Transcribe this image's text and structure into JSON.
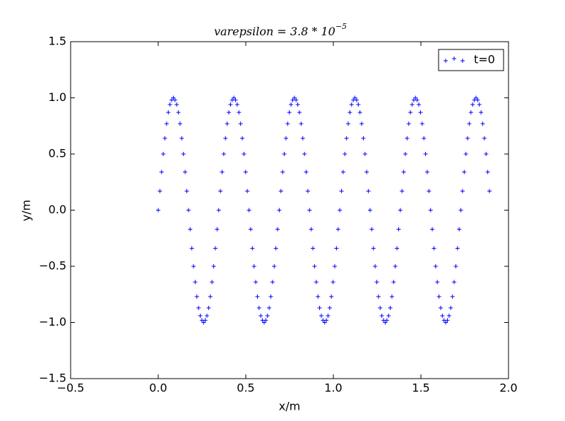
{
  "chart_data": {
    "type": "scatter",
    "title": "varepsilon = 3.8 * 10",
    "title_superscript": "−5",
    "x_label": "x/m",
    "y_label": "y/m",
    "xlim": [
      -0.5,
      2.0
    ],
    "ylim": [
      -1.5,
      1.5
    ],
    "xticks": [
      {
        "value": -0.5,
        "label": "−0.5"
      },
      {
        "value": 0,
        "label": "0.0"
      },
      {
        "value": 0.5,
        "label": "0.5"
      },
      {
        "value": 1,
        "label": "1.0"
      },
      {
        "value": 1.5,
        "label": "1.5"
      },
      {
        "value": 2,
        "label": "2.0"
      }
    ],
    "yticks": [
      {
        "value": -1.5,
        "label": "−1.5"
      },
      {
        "value": -1,
        "label": "−1.0"
      },
      {
        "value": -0.5,
        "label": "−0.5"
      },
      {
        "value": 0,
        "label": "0.0"
      },
      {
        "value": 0.5,
        "label": "0.5"
      },
      {
        "value": 1,
        "label": "1.0"
      },
      {
        "value": 1.5,
        "label": "1.5"
      }
    ],
    "legend": "upper right",
    "series": [
      {
        "name": "t=0",
        "color": "#0000ff",
        "marker": "+",
        "x": [
          0,
          0.0096,
          0.0192,
          0.0288,
          0.0384,
          0.048,
          0.0576,
          0.0672,
          0.0768,
          0.0864,
          0.096,
          0.1056,
          0.1152,
          0.1248,
          0.1344,
          0.144,
          0.1536,
          0.1632,
          0.1728,
          0.1824,
          0.192,
          0.2016,
          0.2112,
          0.2208,
          0.2304,
          0.24,
          0.2496,
          0.2592,
          0.2688,
          0.2784,
          0.288,
          0.2976,
          0.3072,
          0.3168,
          0.3264,
          0.336,
          0.3456,
          0.3552,
          0.3648,
          0.3744,
          0.384,
          0.3936,
          0.4032,
          0.4128,
          0.4224,
          0.432,
          0.4416,
          0.4512,
          0.4608,
          0.4704,
          0.48,
          0.4896,
          0.4992,
          0.5088,
          0.5184,
          0.528,
          0.5376,
          0.5472,
          0.5568,
          0.5664,
          0.576,
          0.5856,
          0.5952,
          0.6048,
          0.6144,
          0.624,
          0.6336,
          0.6432,
          0.6528,
          0.6624,
          0.672,
          0.6816,
          0.6912,
          0.7008,
          0.7104,
          0.72,
          0.7296,
          0.7392,
          0.7488,
          0.7584,
          0.768,
          0.7776,
          0.7872,
          0.7968,
          0.8064,
          0.816,
          0.8256,
          0.8352,
          0.8448,
          0.8544,
          0.864,
          0.8736,
          0.8832,
          0.8928,
          0.9024,
          0.912,
          0.9216,
          0.9312,
          0.9408,
          0.9504,
          0.96,
          0.9696,
          0.9792,
          0.9888,
          0.9984,
          1.008,
          1.0176,
          1.0272,
          1.0368,
          1.0464,
          1.056,
          1.0656,
          1.0752,
          1.0848,
          1.0944,
          1.104,
          1.1136,
          1.1232,
          1.1328,
          1.1424,
          1.152,
          1.1616,
          1.1712,
          1.1808,
          1.1904,
          1.2,
          1.2096,
          1.2192,
          1.2288,
          1.2384,
          1.248,
          1.2576,
          1.2672,
          1.2768,
          1.2864,
          1.296,
          1.3056,
          1.3152,
          1.3248,
          1.3344,
          1.344,
          1.3536,
          1.3632,
          1.3728,
          1.3824,
          1.392,
          1.4016,
          1.4112,
          1.4208,
          1.4304,
          1.44,
          1.4496,
          1.4592,
          1.4688,
          1.4784,
          1.488,
          1.4976,
          1.5072,
          1.5168,
          1.5264,
          1.536,
          1.5456,
          1.5552,
          1.5648,
          1.5744,
          1.584,
          1.5936,
          1.6032,
          1.6128,
          1.6224,
          1.632,
          1.6416,
          1.6512,
          1.6608,
          1.6704,
          1.68,
          1.6896,
          1.6992,
          1.7088,
          1.7184,
          1.728,
          1.7376,
          1.7472,
          1.7568,
          1.7664,
          1.776,
          1.7856,
          1.7952,
          1.8048,
          1.8144,
          1.824,
          1.8336,
          1.8432,
          1.8528,
          1.8624,
          1.872,
          1.8816,
          1.8912
        ],
        "values": [
          0,
          0.17,
          0.34,
          0.5,
          0.64,
          0.77,
          0.87,
          0.94,
          0.98,
          1,
          0.98,
          0.94,
          0.87,
          0.77,
          0.64,
          0.5,
          0.34,
          0.17,
          0,
          -0.17,
          -0.34,
          -0.5,
          -0.64,
          -0.77,
          -0.87,
          -0.94,
          -0.98,
          -1,
          -0.98,
          -0.94,
          -0.87,
          -0.77,
          -0.64,
          -0.5,
          -0.34,
          -0.17,
          0,
          0.17,
          0.34,
          0.5,
          0.64,
          0.77,
          0.87,
          0.94,
          0.98,
          1,
          0.98,
          0.94,
          0.87,
          0.77,
          0.64,
          0.5,
          0.34,
          0.17,
          0,
          -0.17,
          -0.34,
          -0.5,
          -0.64,
          -0.77,
          -0.87,
          -0.94,
          -0.98,
          -1,
          -0.98,
          -0.94,
          -0.87,
          -0.77,
          -0.64,
          -0.5,
          -0.34,
          -0.17,
          0,
          0.17,
          0.34,
          0.5,
          0.64,
          0.77,
          0.87,
          0.94,
          0.98,
          1,
          0.98,
          0.94,
          0.87,
          0.77,
          0.64,
          0.5,
          0.34,
          0.17,
          0,
          -0.17,
          -0.34,
          -0.5,
          -0.64,
          -0.77,
          -0.87,
          -0.94,
          -0.98,
          -1,
          -0.98,
          -0.94,
          -0.87,
          -0.77,
          -0.64,
          -0.5,
          -0.34,
          -0.17,
          0,
          0.17,
          0.34,
          0.5,
          0.64,
          0.77,
          0.87,
          0.94,
          0.98,
          1,
          0.98,
          0.94,
          0.87,
          0.77,
          0.64,
          0.5,
          0.34,
          0.17,
          0,
          -0.17,
          -0.34,
          -0.5,
          -0.64,
          -0.77,
          -0.87,
          -0.94,
          -0.98,
          -1,
          -0.98,
          -0.94,
          -0.87,
          -0.77,
          -0.64,
          -0.5,
          -0.34,
          -0.17,
          0,
          0.17,
          0.34,
          0.5,
          0.64,
          0.77,
          0.87,
          0.94,
          0.98,
          1,
          0.98,
          0.94,
          0.87,
          0.77,
          0.64,
          0.5,
          0.34,
          0.17,
          0,
          -0.17,
          -0.34,
          -0.5,
          -0.64,
          -0.77,
          -0.87,
          -0.94,
          -0.98,
          -1,
          -0.98,
          -0.94,
          -0.87,
          -0.77,
          -0.64,
          -0.5,
          -0.34,
          -0.17,
          0,
          0.17,
          0.34,
          0.5,
          0.64,
          0.77,
          0.87,
          0.94,
          0.98,
          1,
          0.98,
          0.94,
          0.87,
          0.77,
          0.64,
          0.5,
          0.34,
          0.17
        ]
      }
    ]
  }
}
